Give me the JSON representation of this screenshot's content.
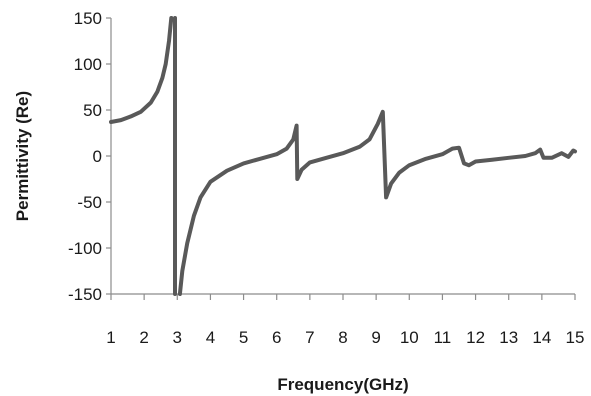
{
  "chart_data": {
    "type": "line",
    "xlabel": "Frequency(GHz)",
    "ylabel": "Permittivity (Re)",
    "xlim": [
      1,
      15
    ],
    "ylim": [
      -150,
      150
    ],
    "x_ticks": [
      "1",
      "2",
      "3",
      "4",
      "5",
      "6",
      "7",
      "8",
      "9",
      "10",
      "11",
      "12",
      "13",
      "14",
      "15"
    ],
    "y_ticks": [
      "150",
      "100",
      "50",
      "0",
      "-50",
      "-100",
      "-150"
    ],
    "grid": false,
    "legend": "none",
    "line_color": "#595959",
    "series": [
      {
        "segments": [
          [
            [
              1.0,
              37
            ],
            [
              1.3,
              39
            ],
            [
              1.6,
              43
            ],
            [
              1.9,
              48
            ],
            [
              2.2,
              58
            ],
            [
              2.4,
              70
            ],
            [
              2.55,
              85
            ],
            [
              2.65,
              100
            ],
            [
              2.75,
              125
            ],
            [
              2.82,
              150
            ]
          ],
          [
            [
              2.93,
              150
            ],
            [
              2.93,
              -150
            ]
          ],
          [
            [
              3.08,
              -150
            ],
            [
              3.15,
              -125
            ],
            [
              3.3,
              -95
            ],
            [
              3.5,
              -65
            ],
            [
              3.7,
              -45
            ],
            [
              4.0,
              -28
            ],
            [
              4.5,
              -16
            ],
            [
              5.0,
              -8
            ],
            [
              5.5,
              -3
            ],
            [
              6.0,
              2
            ],
            [
              6.3,
              8
            ],
            [
              6.5,
              18
            ],
            [
              6.6,
              33
            ],
            [
              6.62,
              -25
            ],
            [
              6.75,
              -15
            ],
            [
              7.0,
              -7
            ],
            [
              7.5,
              -2
            ],
            [
              8.0,
              3
            ],
            [
              8.5,
              10
            ],
            [
              8.8,
              18
            ],
            [
              9.05,
              35
            ],
            [
              9.2,
              48
            ],
            [
              9.3,
              -45
            ],
            [
              9.45,
              -30
            ],
            [
              9.7,
              -18
            ],
            [
              10.0,
              -10
            ],
            [
              10.5,
              -3
            ],
            [
              11.0,
              2
            ],
            [
              11.3,
              8
            ],
            [
              11.5,
              9
            ],
            [
              11.65,
              -8
            ],
            [
              11.8,
              -10
            ],
            [
              12.0,
              -6
            ],
            [
              12.5,
              -4
            ],
            [
              13.0,
              -2
            ],
            [
              13.5,
              0
            ],
            [
              13.8,
              3
            ],
            [
              13.95,
              7
            ],
            [
              14.05,
              -2
            ],
            [
              14.3,
              -2
            ],
            [
              14.6,
              3
            ],
            [
              14.8,
              -1
            ],
            [
              14.95,
              6
            ],
            [
              15.0,
              5
            ]
          ]
        ]
      }
    ]
  }
}
